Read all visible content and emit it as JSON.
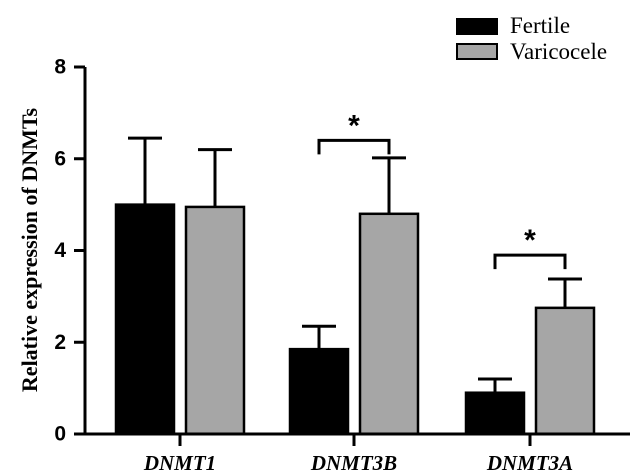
{
  "chart_data": {
    "type": "bar",
    "categories": [
      "DNMT1",
      "DNMT3B",
      "DNMT3A"
    ],
    "series": [
      {
        "name": "Fertile",
        "color": "#000000",
        "values": [
          5.0,
          1.85,
          0.9
        ],
        "errors": [
          1.45,
          0.5,
          0.3
        ]
      },
      {
        "name": "Varicocele",
        "color": "#a6a6a6",
        "values": [
          4.95,
          4.8,
          2.75
        ],
        "errors": [
          1.25,
          1.22,
          0.63
        ]
      }
    ],
    "ylabel": "Relative expression of DNMTs",
    "xlabel": "",
    "ylim": [
      0,
      8
    ],
    "yticks": [
      0,
      2,
      4,
      6,
      8
    ],
    "legend": "top-right",
    "grid": false,
    "significance": [
      {
        "category": "DNMT3B",
        "label": "*",
        "bracket_y": 6.4
      },
      {
        "category": "DNMT3A",
        "label": "*",
        "bracket_y": 3.9
      }
    ]
  }
}
